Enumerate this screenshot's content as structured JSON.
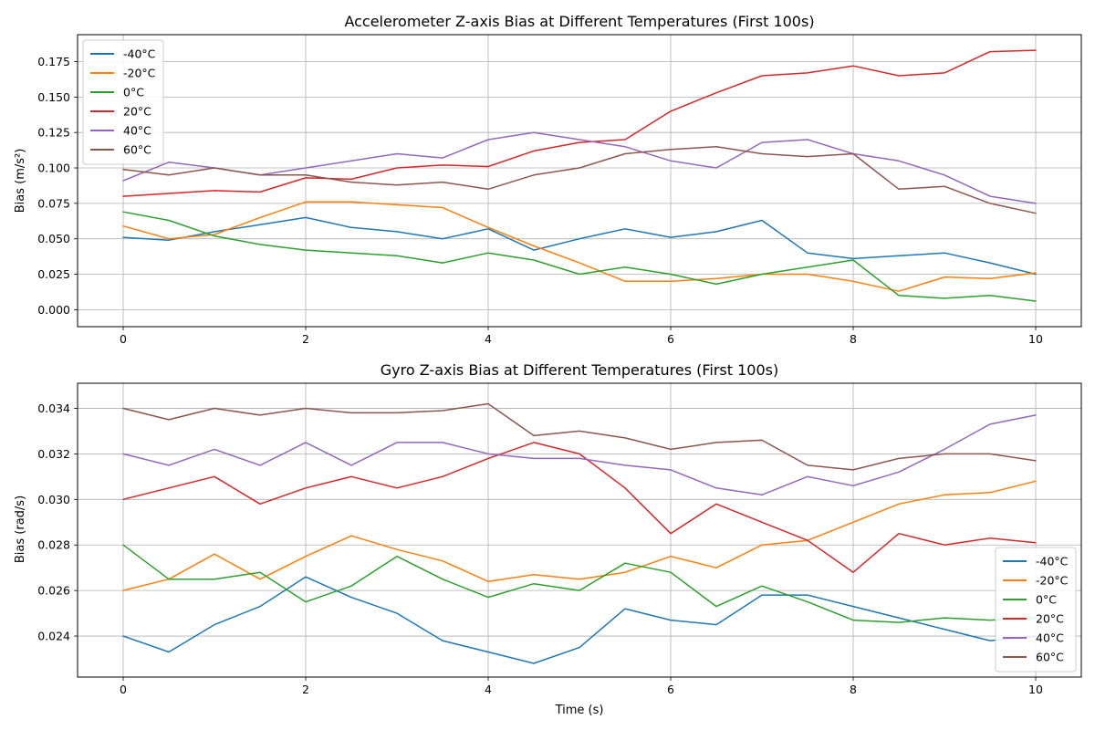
{
  "colors": {
    "-40°C": "#1f77b4",
    "-20°C": "#ff7f0e",
    "0°C": "#2ca02c",
    "20°C": "#d62728",
    "40°C": "#9467bd",
    "60°C": "#8c564b"
  },
  "chart_data": [
    {
      "type": "line",
      "title": "Accelerometer Z-axis Bias at Different Temperatures (First 100s)",
      "xlabel": "",
      "ylabel": "Bias (m/s²)",
      "xlim": [
        -0.5,
        10.5
      ],
      "ylim": [
        -0.012,
        0.194
      ],
      "xticks": [
        0,
        2,
        4,
        6,
        8,
        10
      ],
      "xtick_labels": [
        "0",
        "2",
        "4",
        "6",
        "8",
        "10"
      ],
      "yticks": [
        0.0,
        0.025,
        0.05,
        0.075,
        0.1,
        0.125,
        0.15,
        0.175
      ],
      "ytick_labels": [
        "0.000",
        "0.025",
        "0.050",
        "0.075",
        "0.100",
        "0.125",
        "0.150",
        "0.175"
      ],
      "grid": true,
      "legend_position": "upper-left",
      "x": [
        0,
        0.5,
        1,
        1.5,
        2,
        2.5,
        3,
        3.5,
        4,
        4.5,
        5,
        5.5,
        6,
        6.5,
        7,
        7.5,
        8,
        8.5,
        9,
        9.5,
        10
      ],
      "series": [
        {
          "name": "-40°C",
          "values": [
            0.051,
            0.049,
            0.055,
            0.06,
            0.065,
            0.058,
            0.055,
            0.05,
            0.057,
            0.042,
            0.05,
            0.057,
            0.051,
            0.055,
            0.063,
            0.04,
            0.036,
            0.038,
            0.04,
            0.033,
            0.025
          ]
        },
        {
          "name": "-20°C",
          "values": [
            0.059,
            0.05,
            0.053,
            0.065,
            0.076,
            0.076,
            0.074,
            0.072,
            0.058,
            0.045,
            0.033,
            0.02,
            0.02,
            0.022,
            0.025,
            0.025,
            0.02,
            0.013,
            0.023,
            0.022,
            0.026
          ]
        },
        {
          "name": "0°C",
          "values": [
            0.069,
            0.063,
            0.052,
            0.046,
            0.042,
            0.04,
            0.038,
            0.033,
            0.04,
            0.035,
            0.025,
            0.03,
            0.025,
            0.018,
            0.025,
            0.03,
            0.035,
            0.01,
            0.008,
            0.01,
            0.006
          ]
        },
        {
          "name": "20°C",
          "values": [
            0.08,
            0.082,
            0.084,
            0.083,
            0.093,
            0.092,
            0.1,
            0.102,
            0.101,
            0.112,
            0.118,
            0.12,
            0.14,
            0.153,
            0.165,
            0.167,
            0.172,
            0.165,
            0.167,
            0.182,
            0.183
          ]
        },
        {
          "name": "40°C",
          "values": [
            0.091,
            0.104,
            0.1,
            0.095,
            0.1,
            0.105,
            0.11,
            0.107,
            0.12,
            0.125,
            0.12,
            0.115,
            0.105,
            0.1,
            0.118,
            0.12,
            0.11,
            0.105,
            0.095,
            0.08,
            0.075
          ]
        },
        {
          "name": "60°C",
          "values": [
            0.099,
            0.095,
            0.1,
            0.095,
            0.095,
            0.09,
            0.088,
            0.09,
            0.085,
            0.095,
            0.1,
            0.11,
            0.113,
            0.115,
            0.11,
            0.108,
            0.11,
            0.085,
            0.087,
            0.075,
            0.068
          ]
        }
      ]
    },
    {
      "type": "line",
      "title": "Gyro Z-axis Bias at Different Temperatures (First 100s)",
      "xlabel": "Time (s)",
      "ylabel": "Bias (rad/s)",
      "xlim": [
        -0.5,
        10.5
      ],
      "ylim": [
        0.0222,
        0.0351
      ],
      "xticks": [
        0,
        2,
        4,
        6,
        8,
        10
      ],
      "xtick_labels": [
        "0",
        "2",
        "4",
        "6",
        "8",
        "10"
      ],
      "yticks": [
        0.024,
        0.026,
        0.028,
        0.03,
        0.032,
        0.034
      ],
      "ytick_labels": [
        "0.024",
        "0.026",
        "0.028",
        "0.030",
        "0.032",
        "0.034"
      ],
      "grid": true,
      "legend_position": "lower-right",
      "x": [
        0,
        0.5,
        1,
        1.5,
        2,
        2.5,
        3,
        3.5,
        4,
        4.5,
        5,
        5.5,
        6,
        6.5,
        7,
        7.5,
        8,
        8.5,
        9,
        9.5,
        10
      ],
      "series": [
        {
          "name": "-40°C",
          "values": [
            0.024,
            0.0233,
            0.0245,
            0.0253,
            0.0266,
            0.0257,
            0.025,
            0.0238,
            0.0233,
            0.0228,
            0.0235,
            0.0252,
            0.0247,
            0.0245,
            0.0258,
            0.0258,
            0.0253,
            0.0248,
            0.0243,
            0.0238,
            0.024
          ]
        },
        {
          "name": "-20°C",
          "values": [
            0.026,
            0.0265,
            0.0276,
            0.0265,
            0.0275,
            0.0284,
            0.0278,
            0.0273,
            0.0264,
            0.0267,
            0.0265,
            0.0268,
            0.0275,
            0.027,
            0.028,
            0.0282,
            0.029,
            0.0298,
            0.0302,
            0.0303,
            0.0308
          ]
        },
        {
          "name": "0°C",
          "values": [
            0.028,
            0.0265,
            0.0265,
            0.0268,
            0.0255,
            0.0262,
            0.0275,
            0.0265,
            0.0257,
            0.0263,
            0.026,
            0.0272,
            0.0268,
            0.0253,
            0.0262,
            0.0255,
            0.0247,
            0.0246,
            0.0248,
            0.0247,
            0.0248
          ]
        },
        {
          "name": "20°C",
          "values": [
            0.03,
            0.0305,
            0.031,
            0.0298,
            0.0305,
            0.031,
            0.0305,
            0.031,
            0.0318,
            0.0325,
            0.032,
            0.0305,
            0.0285,
            0.0298,
            0.029,
            0.0282,
            0.0268,
            0.0285,
            0.028,
            0.0283,
            0.0281
          ]
        },
        {
          "name": "40°C",
          "values": [
            0.032,
            0.0315,
            0.0322,
            0.0315,
            0.0325,
            0.0315,
            0.0325,
            0.0325,
            0.032,
            0.0318,
            0.0318,
            0.0315,
            0.0313,
            0.0305,
            0.0302,
            0.031,
            0.0306,
            0.0312,
            0.0322,
            0.0333,
            0.0337
          ]
        },
        {
          "name": "60°C",
          "values": [
            0.034,
            0.0335,
            0.034,
            0.0337,
            0.034,
            0.0338,
            0.0338,
            0.0339,
            0.0342,
            0.0328,
            0.033,
            0.0327,
            0.0322,
            0.0325,
            0.0326,
            0.0315,
            0.0313,
            0.0318,
            0.032,
            0.032,
            0.0317
          ]
        }
      ]
    }
  ]
}
